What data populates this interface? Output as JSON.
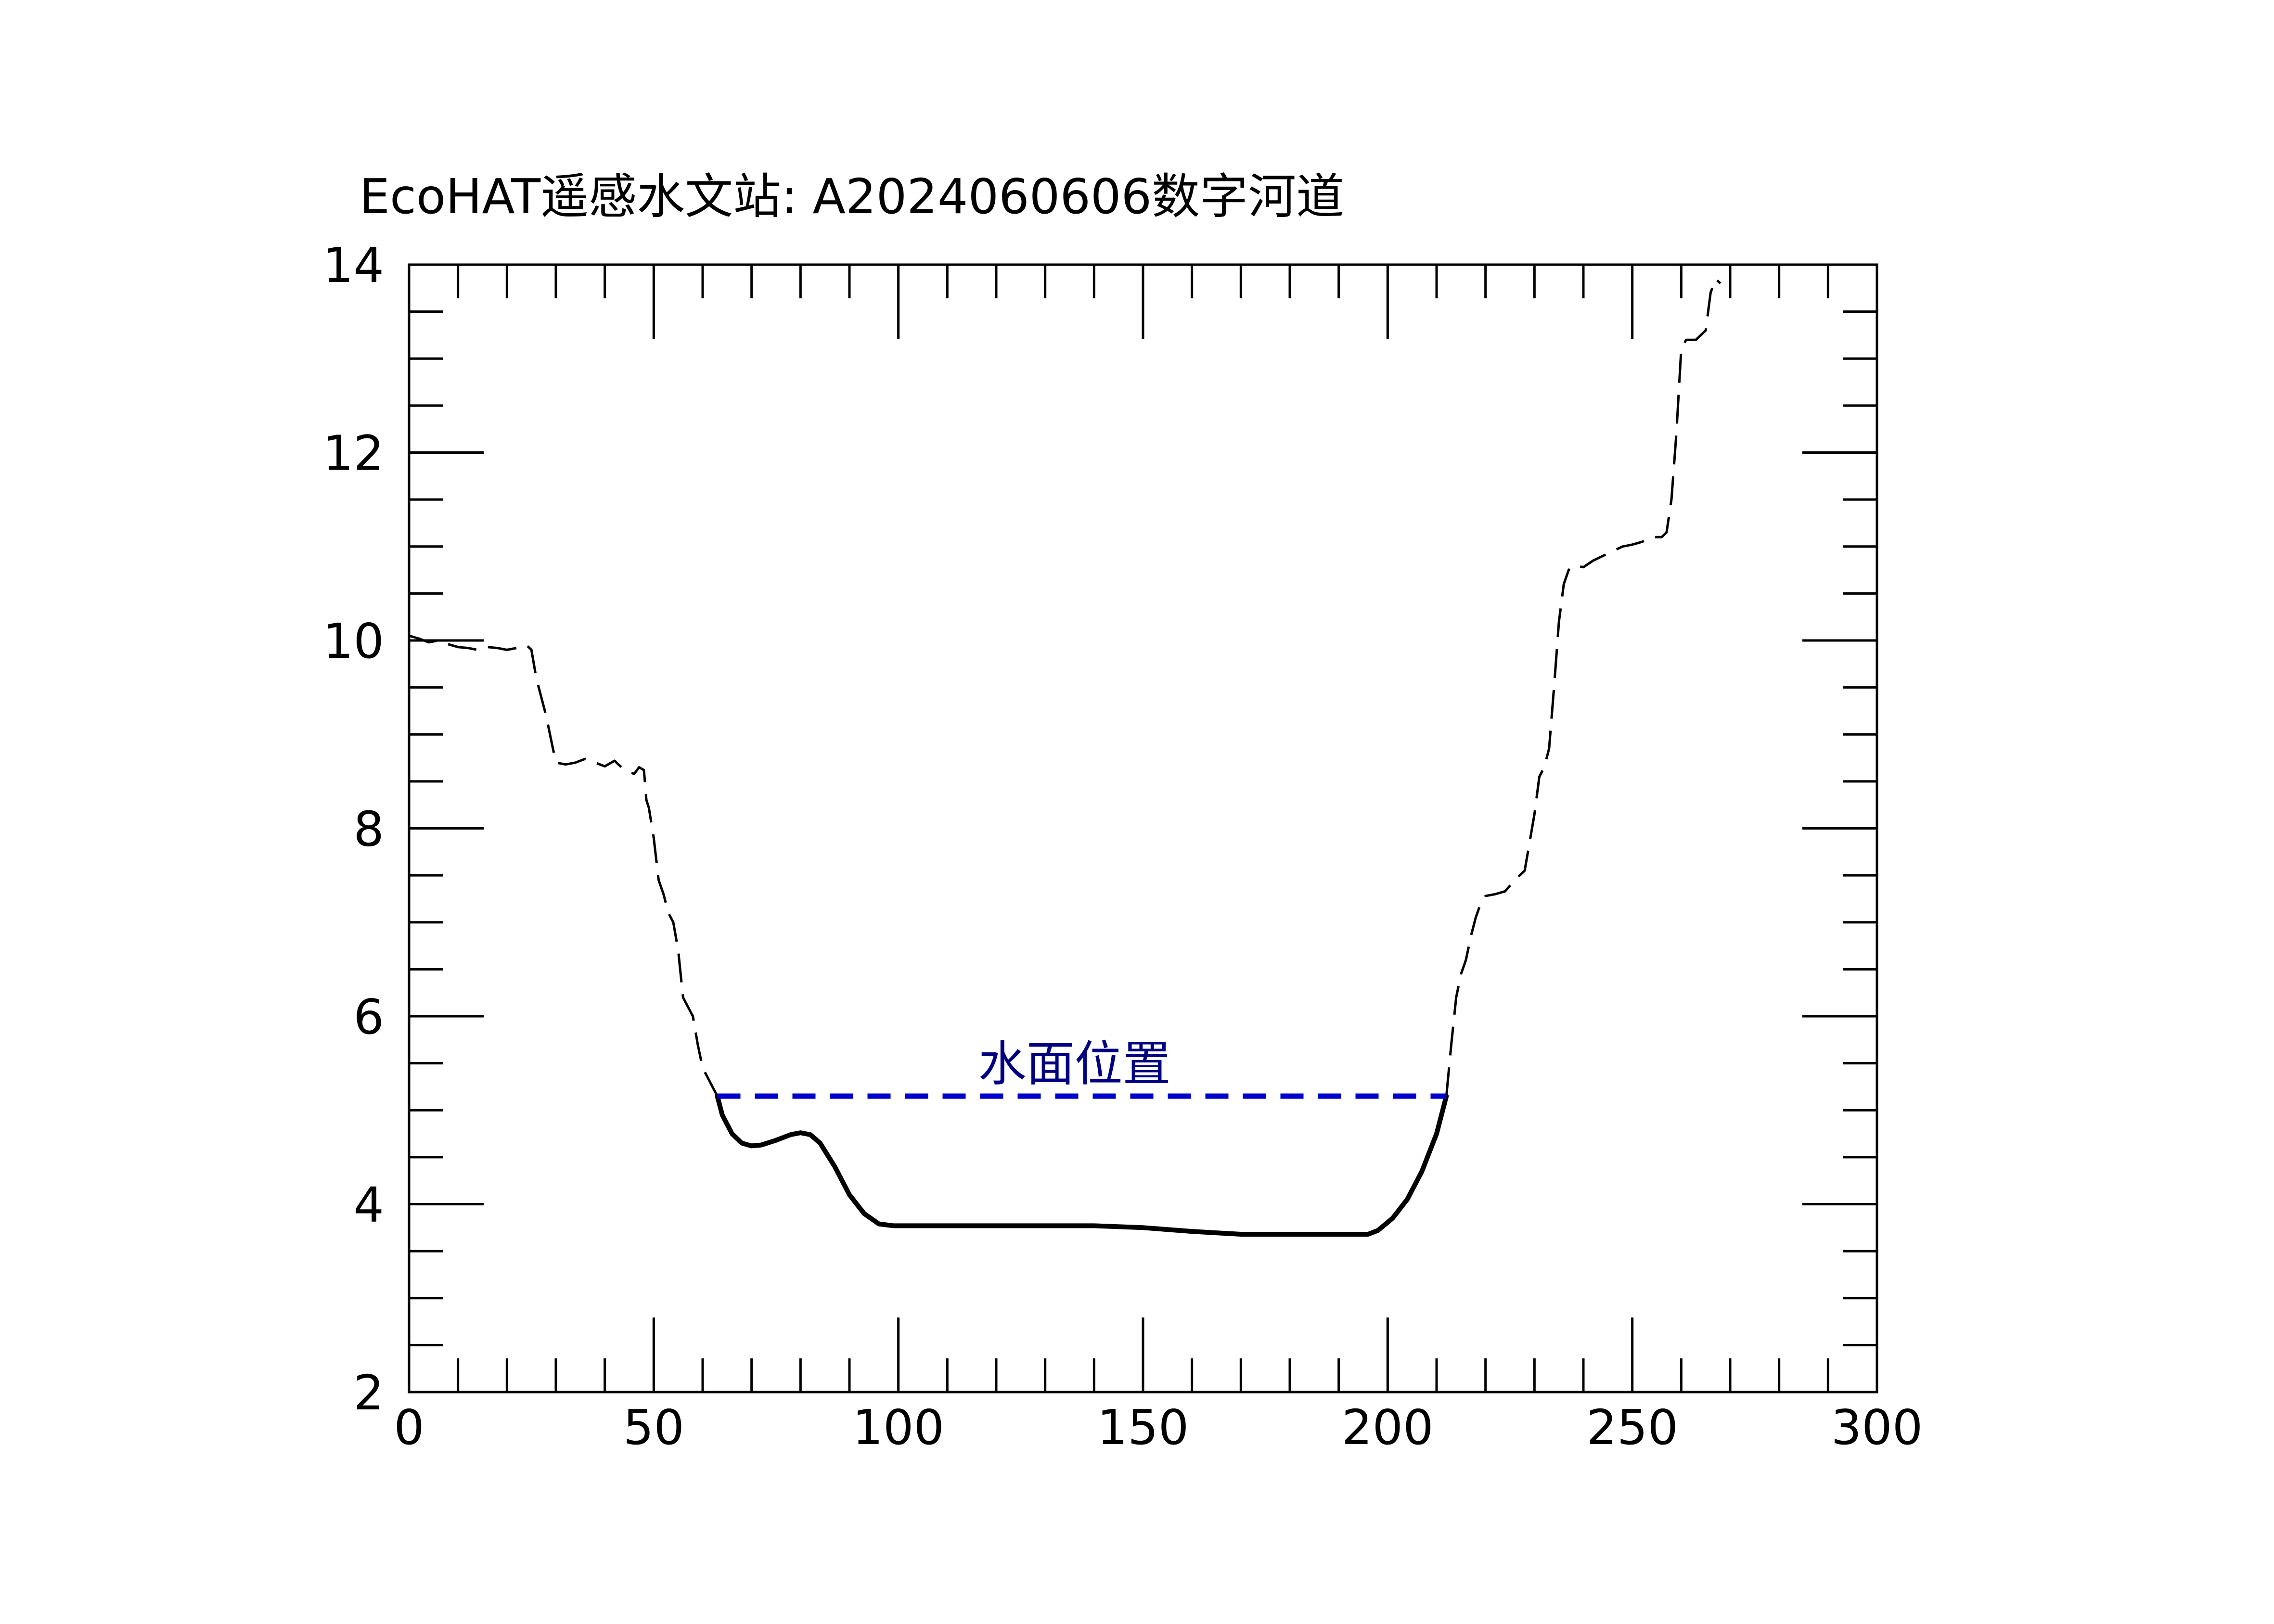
{
  "chart_data": {
    "type": "line",
    "title": "EcoHAT遥感水文站: A2024060606数字河道",
    "xlabel": "",
    "ylabel": "",
    "xlim": [
      0,
      300
    ],
    "ylim": [
      2,
      14
    ],
    "x_ticks": [
      "0",
      "50",
      "100",
      "150",
      "200",
      "250",
      "300"
    ],
    "y_ticks": [
      "2",
      "4",
      "6",
      "8",
      "10",
      "12",
      "14"
    ],
    "x_minor_step": 10,
    "y_minor_step": 0.5,
    "grid": false,
    "colors": {
      "profile": "#000000",
      "water_line": "#0000cc",
      "water_label": "#000080"
    },
    "annotation": {
      "text": "水面位置",
      "x": 136,
      "y": 5.5
    },
    "series": [
      {
        "style": "dashed",
        "points": [
          [
            0,
            10.05
          ],
          [
            2,
            10.02
          ],
          [
            4,
            9.98
          ],
          [
            6,
            10.0
          ],
          [
            8,
            9.96
          ],
          [
            10,
            9.93
          ],
          [
            12,
            9.92
          ],
          [
            14,
            9.9
          ],
          [
            16,
            9.93
          ],
          [
            18,
            9.92
          ],
          [
            20,
            9.9
          ],
          [
            22,
            9.92
          ],
          [
            24,
            9.95
          ],
          [
            25,
            9.9
          ],
          [
            26,
            9.6
          ],
          [
            28,
            9.2
          ],
          [
            29,
            8.95
          ],
          [
            30,
            8.7
          ],
          [
            32,
            8.68
          ],
          [
            34,
            8.7
          ],
          [
            36,
            8.74
          ],
          [
            38,
            8.7
          ],
          [
            40,
            8.66
          ],
          [
            42,
            8.72
          ],
          [
            44,
            8.62
          ],
          [
            46,
            8.58
          ],
          [
            47,
            8.65
          ],
          [
            48,
            8.62
          ],
          [
            48.5,
            8.3
          ],
          [
            49,
            8.22
          ],
          [
            50,
            7.9
          ],
          [
            51,
            7.45
          ],
          [
            52,
            7.3
          ],
          [
            53,
            7.1
          ],
          [
            54,
            7.0
          ],
          [
            55,
            6.7
          ],
          [
            56,
            6.2
          ],
          [
            57,
            6.1
          ],
          [
            58,
            6.0
          ],
          [
            59,
            5.7
          ],
          [
            60,
            5.45
          ],
          [
            61,
            5.35
          ],
          [
            62,
            5.25
          ],
          [
            63,
            5.15
          ]
        ]
      },
      {
        "style": "solid",
        "points": [
          [
            63,
            5.15
          ],
          [
            64,
            4.95
          ],
          [
            66,
            4.75
          ],
          [
            68,
            4.65
          ],
          [
            70,
            4.62
          ],
          [
            72,
            4.63
          ],
          [
            75,
            4.68
          ],
          [
            78,
            4.74
          ],
          [
            80,
            4.76
          ],
          [
            82,
            4.74
          ],
          [
            84,
            4.65
          ],
          [
            87,
            4.4
          ],
          [
            90,
            4.1
          ],
          [
            93,
            3.9
          ],
          [
            96,
            3.79
          ],
          [
            99,
            3.77
          ],
          [
            110,
            3.77
          ],
          [
            125,
            3.77
          ],
          [
            140,
            3.77
          ],
          [
            150,
            3.75
          ],
          [
            160,
            3.71
          ],
          [
            170,
            3.68
          ],
          [
            180,
            3.68
          ],
          [
            190,
            3.68
          ],
          [
            196,
            3.68
          ],
          [
            198,
            3.72
          ],
          [
            201,
            3.85
          ],
          [
            204,
            4.05
          ],
          [
            207,
            4.35
          ],
          [
            210,
            4.75
          ],
          [
            212,
            5.15
          ]
        ]
      },
      {
        "style": "dashed",
        "points": [
          [
            212,
            5.15
          ],
          [
            213,
            5.7
          ],
          [
            214,
            6.2
          ],
          [
            215,
            6.45
          ],
          [
            216,
            6.6
          ],
          [
            217,
            6.85
          ],
          [
            218,
            7.05
          ],
          [
            219,
            7.2
          ],
          [
            220,
            7.28
          ],
          [
            222,
            7.3
          ],
          [
            224,
            7.33
          ],
          [
            226,
            7.45
          ],
          [
            228,
            7.55
          ],
          [
            229,
            7.85
          ],
          [
            230,
            8.15
          ],
          [
            231,
            8.55
          ],
          [
            232,
            8.65
          ],
          [
            233,
            8.85
          ],
          [
            234,
            9.5
          ],
          [
            235,
            10.2
          ],
          [
            236,
            10.6
          ],
          [
            237,
            10.75
          ],
          [
            238,
            10.8
          ],
          [
            240,
            10.78
          ],
          [
            242,
            10.85
          ],
          [
            244,
            10.9
          ],
          [
            246,
            10.95
          ],
          [
            248,
            11.0
          ],
          [
            250,
            11.02
          ],
          [
            252,
            11.05
          ],
          [
            254,
            11.1
          ],
          [
            256,
            11.1
          ],
          [
            257,
            11.15
          ],
          [
            258,
            11.5
          ],
          [
            259,
            12.2
          ],
          [
            260,
            13.1
          ],
          [
            261,
            13.2
          ],
          [
            263,
            13.2
          ],
          [
            264,
            13.25
          ],
          [
            265,
            13.3
          ],
          [
            266,
            13.7
          ],
          [
            267,
            13.85
          ],
          [
            268,
            13.8
          ]
        ]
      },
      {
        "style": "dashed-thick",
        "points": [
          [
            63,
            5.15
          ],
          [
            212,
            5.15
          ]
        ]
      }
    ]
  }
}
